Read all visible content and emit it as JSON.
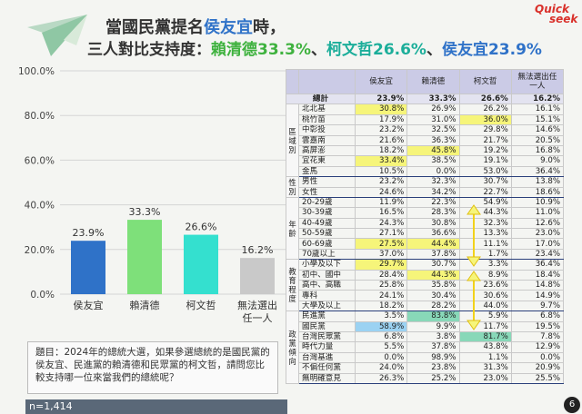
{
  "title": {
    "line1_prefix": "當國民黨提名",
    "line1_name": "侯友宜",
    "line1_suffix": "時，",
    "line2_prefix": "三人對比支持度：",
    "line2_a": "賴清德33.3%",
    "sep1": "、",
    "line2_b": "柯文哲26.6%",
    "sep2": "、",
    "line2_c": "侯友宜23.9%"
  },
  "brand": {
    "line1": "Quick",
    "line2": "seek"
  },
  "chart_data": {
    "type": "bar",
    "categories": [
      "侯友宜",
      "賴清德",
      "柯文哲",
      "無法選出任一人"
    ],
    "category_lines": [
      [
        "侯友宜"
      ],
      [
        "賴清德"
      ],
      [
        "柯文哲"
      ],
      [
        "無法選出",
        "任一人"
      ]
    ],
    "values": [
      23.9,
      33.3,
      26.6,
      16.2
    ],
    "value_labels": [
      "23.9%",
      "33.3%",
      "26.6%",
      "16.2%"
    ],
    "colors": [
      "#2f72c8",
      "#7ee07a",
      "#34e0cf",
      "#c9c9c9"
    ],
    "ylim": [
      0,
      100
    ],
    "yticks": [
      "0.0%",
      "20.0%",
      "40.0%",
      "60.0%",
      "80.0%",
      "100.0%"
    ],
    "ytick_values": [
      0,
      20,
      40,
      60,
      80,
      100
    ],
    "grid": true,
    "title": "",
    "xlabel": "",
    "ylabel": ""
  },
  "question": "題目：2024年的總統大選，如果參選總統的是國民黨的侯友宜、民進黨的賴清德和民眾黨的柯文哲，請問您比較支持哪一位來當我們的總統呢？",
  "sample": "n=1,414",
  "page_number": "6",
  "table": {
    "headers": [
      "侯友宜",
      "賴清德",
      "柯文哲",
      "無法選出任一人"
    ],
    "total": {
      "label": "總計",
      "values": [
        "23.9%",
        "33.3%",
        "26.6%",
        "16.2%"
      ]
    },
    "groups": [
      {
        "name": "區域別",
        "rows": [
          {
            "label": "北北基",
            "values": [
              "30.8%",
              "26.9%",
              "26.2%",
              "16.1%"
            ],
            "hl": [
              "y",
              "",
              "",
              ""
            ]
          },
          {
            "label": "桃竹苗",
            "values": [
              "17.9%",
              "31.0%",
              "36.0%",
              "15.1%"
            ],
            "hl": [
              "",
              "",
              "y",
              ""
            ]
          },
          {
            "label": "中彰投",
            "values": [
              "23.2%",
              "32.5%",
              "29.8%",
              "14.6%"
            ],
            "hl": [
              "",
              "",
              "",
              ""
            ]
          },
          {
            "label": "雲嘉南",
            "values": [
              "21.6%",
              "36.3%",
              "21.7%",
              "20.5%"
            ],
            "hl": [
              "",
              "",
              "",
              ""
            ]
          },
          {
            "label": "高屏澎",
            "values": [
              "18.2%",
              "45.8%",
              "19.2%",
              "16.8%"
            ],
            "hl": [
              "",
              "y",
              "",
              ""
            ]
          },
          {
            "label": "宜花東",
            "values": [
              "33.4%",
              "38.5%",
              "19.1%",
              "9.0%"
            ],
            "hl": [
              "y",
              "",
              "",
              ""
            ]
          },
          {
            "label": "金馬",
            "values": [
              "10.5%",
              "0.0%",
              "53.0%",
              "36.4%"
            ],
            "hl": [
              "",
              "",
              "",
              ""
            ]
          }
        ]
      },
      {
        "name": "性別",
        "rows": [
          {
            "label": "男性",
            "values": [
              "23.2%",
              "32.3%",
              "30.7%",
              "13.8%"
            ],
            "hl": [
              "",
              "",
              "",
              ""
            ]
          },
          {
            "label": "女性",
            "values": [
              "24.6%",
              "34.2%",
              "22.7%",
              "18.6%"
            ],
            "hl": [
              "",
              "",
              "",
              ""
            ]
          }
        ]
      },
      {
        "name": "年齡",
        "rows": [
          {
            "label": "20-29歲",
            "values": [
              "11.9%",
              "22.3%",
              "54.9%",
              "10.9%"
            ],
            "hl": [
              "",
              "",
              "",
              ""
            ]
          },
          {
            "label": "30-39歲",
            "values": [
              "16.5%",
              "28.3%",
              "44.3%",
              "11.0%"
            ],
            "hl": [
              "",
              "",
              "",
              ""
            ]
          },
          {
            "label": "40-49歲",
            "values": [
              "24.3%",
              "30.8%",
              "32.3%",
              "12.6%"
            ],
            "hl": [
              "",
              "",
              "",
              ""
            ]
          },
          {
            "label": "50-59歲",
            "values": [
              "27.1%",
              "36.6%",
              "13.3%",
              "23.0%"
            ],
            "hl": [
              "",
              "",
              "",
              ""
            ]
          },
          {
            "label": "60-69歲",
            "values": [
              "27.5%",
              "44.4%",
              "11.1%",
              "17.0%"
            ],
            "hl": [
              "y",
              "y",
              "",
              ""
            ]
          },
          {
            "label": "70歲以上",
            "values": [
              "37.0%",
              "37.8%",
              "1.7%",
              "23.4%"
            ],
            "hl": [
              "",
              "",
              "",
              ""
            ]
          }
        ]
      },
      {
        "name": "教育程度",
        "rows": [
          {
            "label": "小學及以下",
            "values": [
              "29.7%",
              "30.7%",
              "3.3%",
              "36.4%"
            ],
            "hl": [
              "y",
              "",
              "",
              ""
            ]
          },
          {
            "label": "初中、國中",
            "values": [
              "28.4%",
              "44.3%",
              "8.9%",
              "18.4%"
            ],
            "hl": [
              "",
              "y",
              "",
              ""
            ]
          },
          {
            "label": "高中、高職",
            "values": [
              "25.8%",
              "35.8%",
              "23.6%",
              "14.8%"
            ],
            "hl": [
              "",
              "",
              "",
              ""
            ]
          },
          {
            "label": "專科",
            "values": [
              "24.1%",
              "30.4%",
              "30.6%",
              "14.9%"
            ],
            "hl": [
              "",
              "",
              "",
              ""
            ]
          },
          {
            "label": "大學及以上",
            "values": [
              "18.2%",
              "28.2%",
              "44.0%",
              "9.7%"
            ],
            "hl": [
              "",
              "",
              "",
              ""
            ]
          }
        ]
      },
      {
        "name": "政黨傾向",
        "rows": [
          {
            "label": "民進黨",
            "values": [
              "3.5%",
              "83.8%",
              "5.9%",
              "6.8%"
            ],
            "hl": [
              "",
              "g",
              "",
              ""
            ]
          },
          {
            "label": "國民黨",
            "values": [
              "58.9%",
              "9.9%",
              "11.7%",
              "19.5%"
            ],
            "hl": [
              "b",
              "",
              "",
              ""
            ]
          },
          {
            "label": "台灣民眾黨",
            "values": [
              "6.8%",
              "3.8%",
              "81.7%",
              "7.8%"
            ],
            "hl": [
              "",
              "",
              "g",
              ""
            ]
          },
          {
            "label": "時代力量",
            "values": [
              "5.5%",
              "37.8%",
              "43.8%",
              "12.9%"
            ],
            "hl": [
              "",
              "",
              "",
              ""
            ]
          },
          {
            "label": "台灣基進",
            "values": [
              "0.0%",
              "98.9%",
              "1.1%",
              "0.0%"
            ],
            "hl": [
              "",
              "",
              "",
              ""
            ]
          },
          {
            "label": "不偏任何黨",
            "values": [
              "24.0%",
              "23.8%",
              "31.3%",
              "20.9%"
            ],
            "hl": [
              "",
              "",
              "",
              ""
            ]
          },
          {
            "label": "無明確意見",
            "values": [
              "26.3%",
              "25.2%",
              "23.0%",
              "25.5%"
            ],
            "hl": [
              "",
              "",
              "",
              ""
            ]
          }
        ]
      }
    ]
  }
}
